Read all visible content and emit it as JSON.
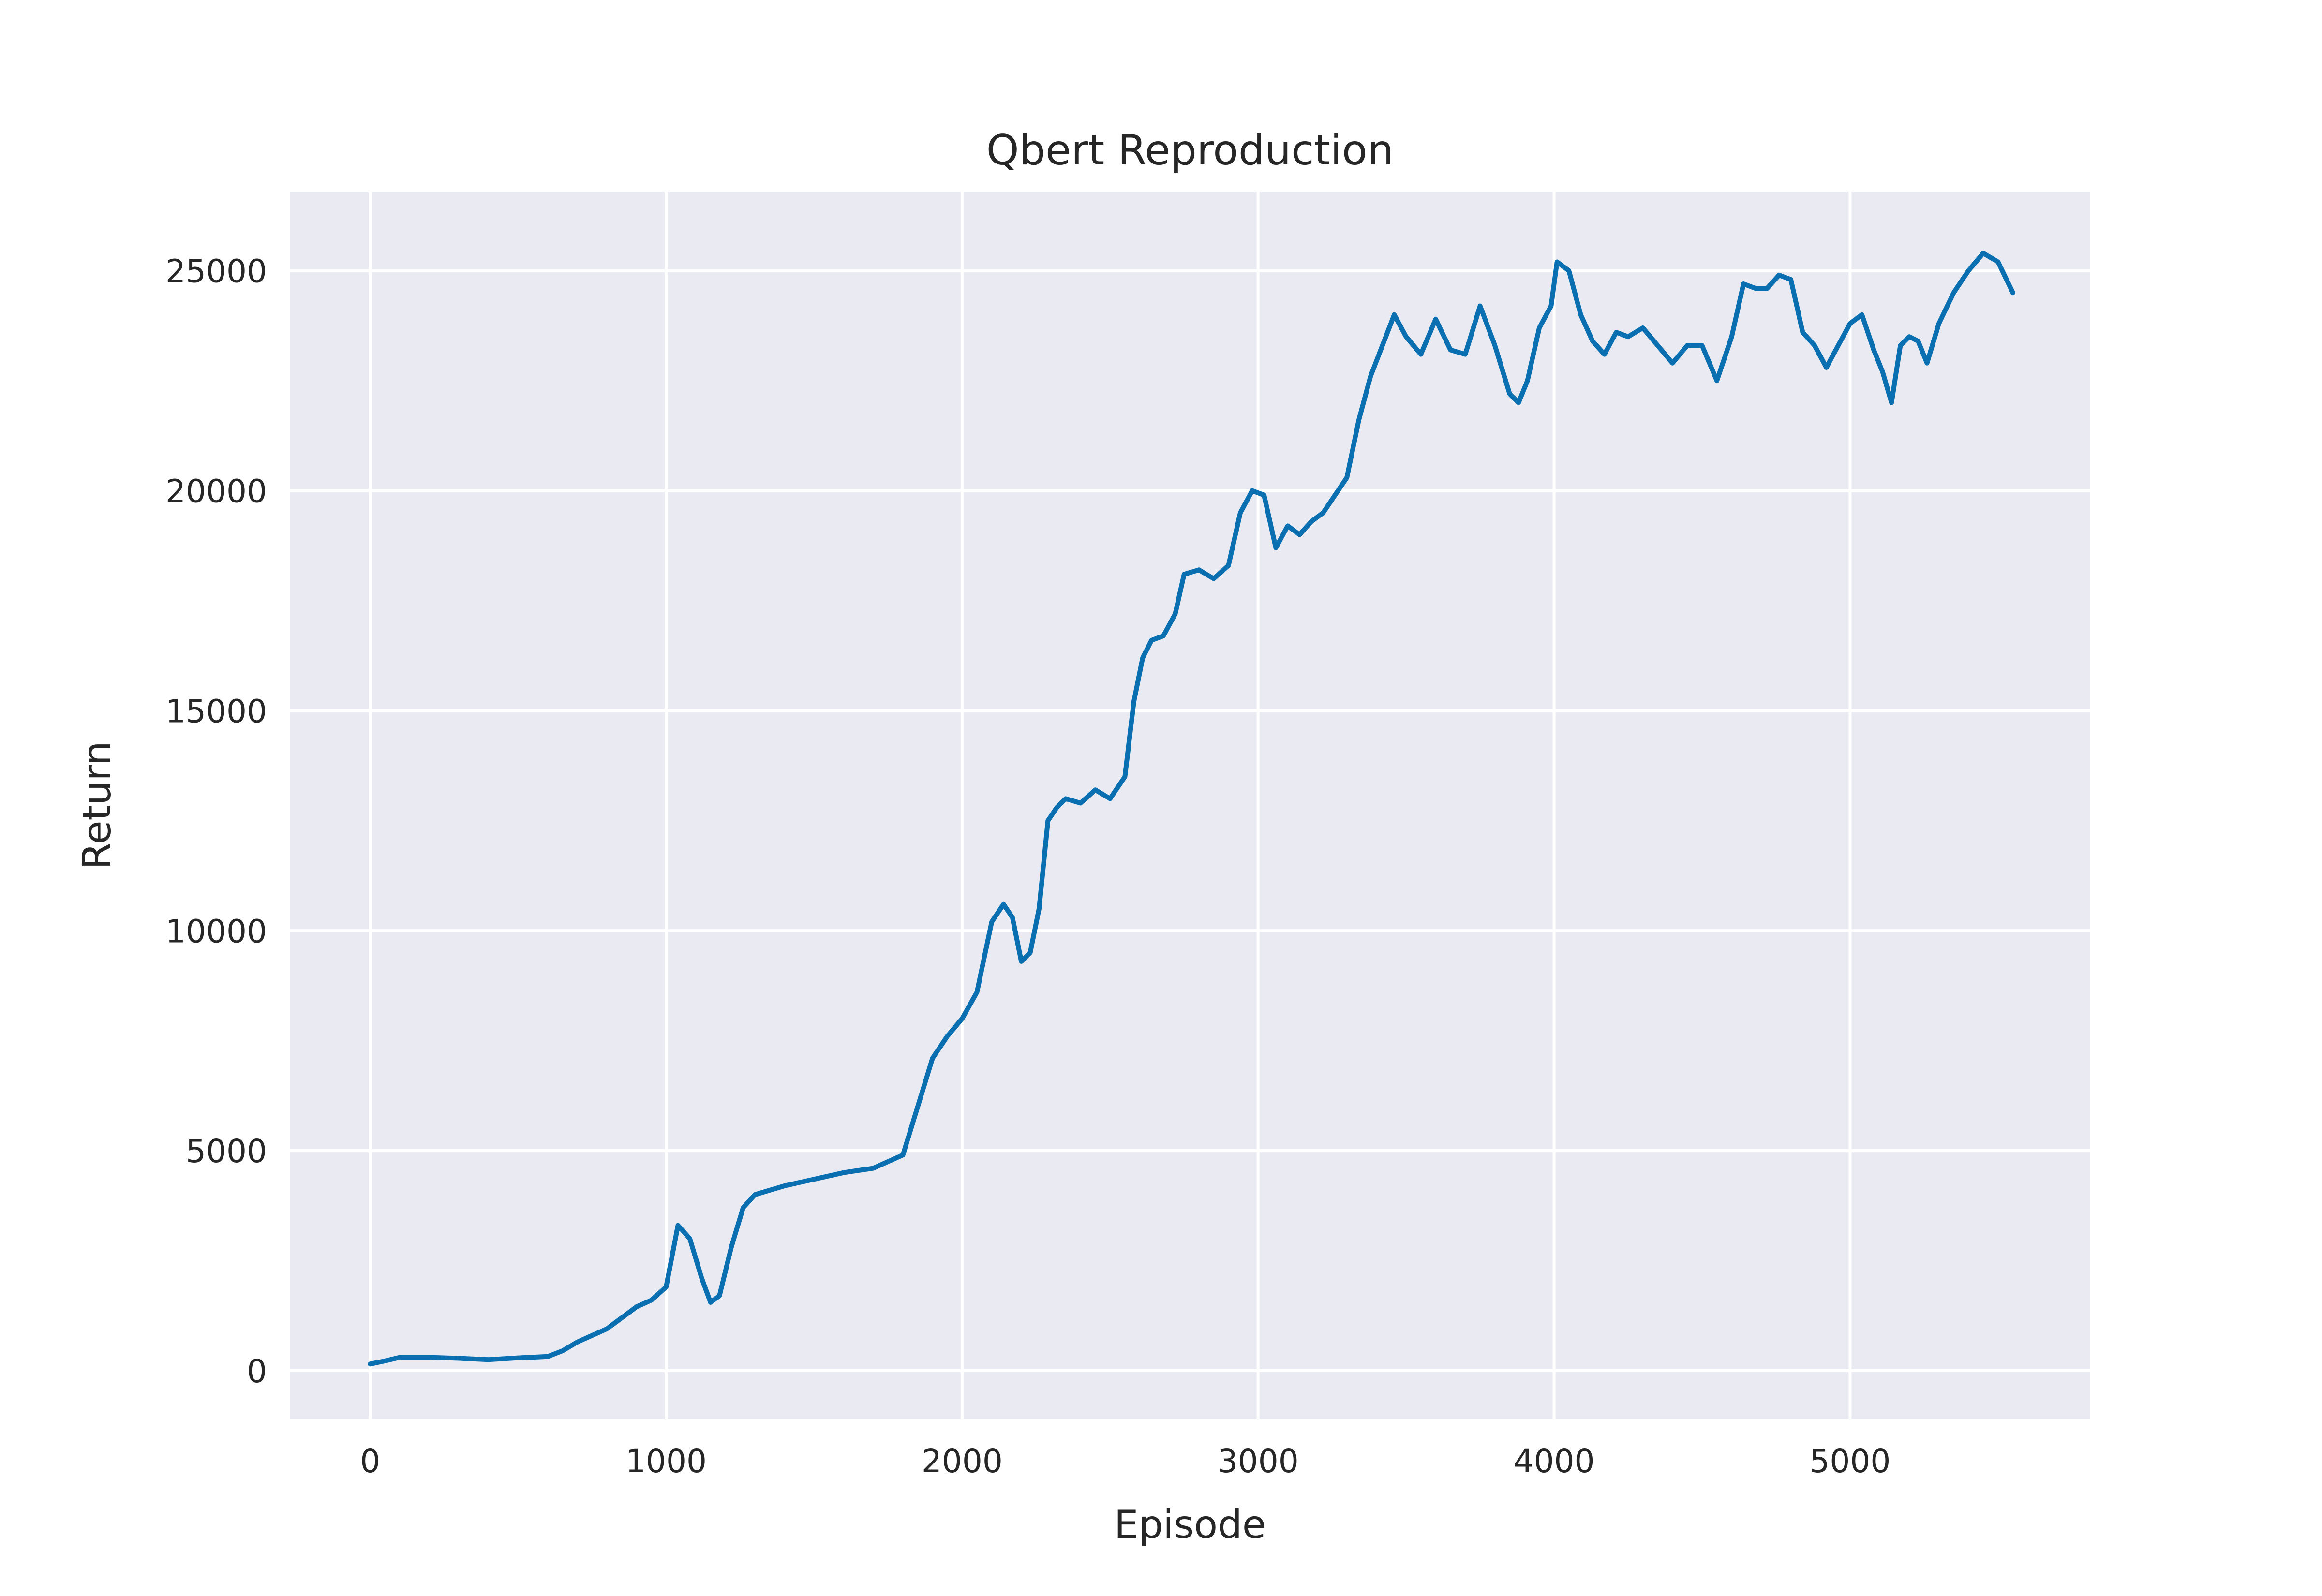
{
  "chart_data": {
    "type": "line",
    "title": "Qbert Reproduction",
    "xlabel": "Episode",
    "ylabel": "Return",
    "xlim": [
      -270,
      5810
    ],
    "ylim": [
      -1100,
      26800
    ],
    "xticks": [
      0,
      1000,
      2000,
      3000,
      4000,
      5000
    ],
    "yticks": [
      0,
      5000,
      10000,
      15000,
      20000,
      25000
    ],
    "grid": true,
    "background": "#eaeaf2",
    "grid_color": "#ffffff",
    "series": [
      {
        "color": "#0a6fb0",
        "x": [
          0,
          50,
          100,
          200,
          300,
          400,
          500,
          600,
          650,
          700,
          750,
          800,
          850,
          900,
          950,
          1000,
          1040,
          1080,
          1120,
          1150,
          1180,
          1220,
          1260,
          1300,
          1400,
          1500,
          1600,
          1700,
          1750,
          1800,
          1850,
          1900,
          1950,
          2000,
          2050,
          2100,
          2140,
          2170,
          2200,
          2230,
          2260,
          2290,
          2320,
          2350,
          2400,
          2450,
          2500,
          2550,
          2580,
          2610,
          2640,
          2680,
          2720,
          2750,
          2800,
          2850,
          2900,
          2940,
          2980,
          3020,
          3060,
          3100,
          3140,
          3180,
          3220,
          3260,
          3300,
          3340,
          3380,
          3420,
          3460,
          3500,
          3550,
          3600,
          3650,
          3700,
          3750,
          3800,
          3850,
          3880,
          3910,
          3950,
          3990,
          4010,
          4050,
          4090,
          4130,
          4170,
          4210,
          4250,
          4300,
          4350,
          4400,
          4450,
          4500,
          4550,
          4600,
          4640,
          4680,
          4720,
          4760,
          4800,
          4840,
          4880,
          4920,
          4960,
          5000,
          5040,
          5080,
          5110,
          5140,
          5170,
          5200,
          5230,
          5260,
          5300,
          5350,
          5400,
          5450,
          5500,
          5550
        ],
        "y": [
          150,
          220,
          300,
          300,
          280,
          250,
          290,
          320,
          450,
          650,
          800,
          950,
          1200,
          1450,
          1600,
          1900,
          3300,
          3000,
          2100,
          1550,
          1700,
          2800,
          3700,
          4000,
          4200,
          4350,
          4500,
          4600,
          4750,
          4900,
          6000,
          7100,
          7600,
          8000,
          8600,
          10200,
          10600,
          10300,
          9300,
          9500,
          10500,
          12500,
          12800,
          13000,
          12900,
          13200,
          13000,
          13500,
          15200,
          16200,
          16600,
          16700,
          17200,
          18100,
          18200,
          18000,
          18300,
          19500,
          20000,
          19900,
          18700,
          19200,
          19000,
          19300,
          19500,
          19900,
          20300,
          21600,
          22600,
          23300,
          24000,
          23500,
          23100,
          23900,
          23200,
          23100,
          24200,
          23300,
          22200,
          22000,
          22500,
          23700,
          24200,
          25200,
          25000,
          24000,
          23400,
          23100,
          23600,
          23500,
          23700,
          23300,
          22900,
          23300,
          23300,
          22500,
          23500,
          24700,
          24600,
          24600,
          24900,
          24800,
          23600,
          23300,
          22800,
          23300,
          23800,
          24000,
          23200,
          22700,
          22000,
          23300,
          23500,
          23400,
          22900,
          23800,
          24500,
          25000,
          25400,
          25200,
          24500
        ]
      }
    ]
  }
}
